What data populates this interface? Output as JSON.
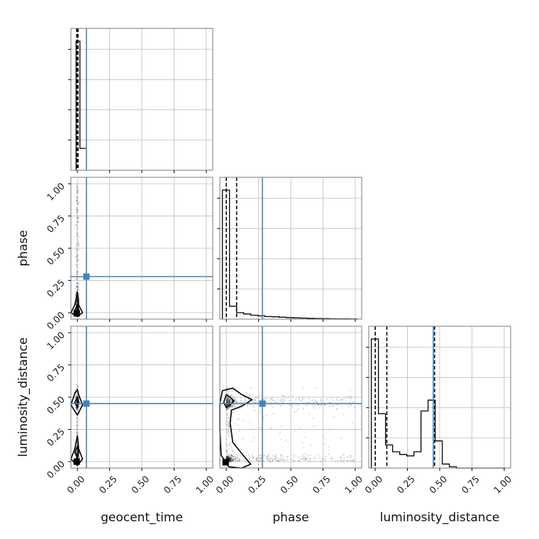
{
  "chart_data": {
    "type": "corner",
    "parameters": [
      "geocent_time",
      "phase",
      "luminosity_distance"
    ],
    "axis_labels": {
      "x": [
        "geocent_time",
        "phase",
        "luminosity_distance"
      ],
      "y": [
        "phase",
        "luminosity_distance"
      ]
    },
    "tick_labels": [
      "0.00",
      "0.25",
      "0.50",
      "0.75",
      "1.00"
    ],
    "range": [
      -0.05,
      1.05
    ],
    "grid": true,
    "colors": {
      "truth": "#4682b4",
      "hist": "#000000",
      "samples": "#000000"
    },
    "truths": {
      "geocent_time": 0.07,
      "phase": 0.28,
      "luminosity_distance": 0.45
    },
    "quantile_lines": {
      "geocent_time": [
        -0.005,
        0.0,
        0.005
      ],
      "phase": [
        0.0,
        0.08
      ],
      "luminosity_distance": [
        0.0,
        0.09,
        0.46
      ]
    },
    "histograms": {
      "geocent_time": {
        "edges": [
          -0.01,
          0.02,
          0.07
        ],
        "counts": [
          1.0,
          0.17
        ]
      },
      "phase": {
        "edges": [
          -0.03,
          0.025,
          0.08,
          0.135,
          0.19,
          0.245,
          0.3,
          0.355,
          0.41,
          0.465,
          0.52,
          0.575,
          0.63,
          0.685,
          0.74,
          0.795,
          0.85,
          0.905,
          0.96,
          1.015
        ],
        "counts": [
          1.0,
          0.1,
          0.05,
          0.04,
          0.03,
          0.025,
          0.02,
          0.018,
          0.015,
          0.012,
          0.01,
          0.008,
          0.006,
          0.005,
          0.004,
          0.003,
          0.002,
          0.002,
          0.001
        ]
      },
      "luminosity_distance": {
        "edges": [
          -0.03,
          0.025,
          0.08,
          0.135,
          0.19,
          0.245,
          0.3,
          0.355,
          0.41,
          0.465,
          0.52,
          0.575,
          0.63,
          0.685,
          0.74,
          0.795,
          0.85,
          0.905,
          0.96,
          1.015
        ],
        "counts": [
          0.95,
          0.4,
          0.17,
          0.12,
          0.1,
          0.09,
          0.12,
          0.42,
          0.5,
          0.2,
          0.03,
          0.01,
          0.0,
          0.0,
          0.0,
          0.0,
          0.0,
          0.0,
          0.0
        ]
      }
    },
    "contours": {
      "phase_vs_geocent_time": [
        {
          "points": [
            [
              0.0,
              -0.03
            ],
            [
              -0.05,
              0.0
            ],
            [
              -0.02,
              0.06
            ],
            [
              0.0,
              0.16
            ],
            [
              0.01,
              0.06
            ],
            [
              0.04,
              0.0
            ],
            [
              0.0,
              -0.03
            ]
          ]
        },
        {
          "points": [
            [
              0.0,
              0.0
            ],
            [
              -0.02,
              0.02
            ],
            [
              0.0,
              0.06
            ],
            [
              0.01,
              0.02
            ],
            [
              0.0,
              0.0
            ]
          ]
        }
      ],
      "luminosity_distance_vs_geocent_time": [
        {
          "points": [
            [
              0.0,
              -0.03
            ],
            [
              -0.05,
              0.02
            ],
            [
              -0.02,
              0.1
            ],
            [
              0.0,
              0.2
            ],
            [
              0.01,
              0.1
            ],
            [
              0.04,
              0.02
            ],
            [
              0.0,
              -0.03
            ]
          ]
        },
        {
          "points": [
            [
              0.0,
              0.36
            ],
            [
              -0.05,
              0.44
            ],
            [
              -0.02,
              0.53
            ],
            [
              0.0,
              0.56
            ],
            [
              0.01,
              0.52
            ],
            [
              0.04,
              0.44
            ],
            [
              0.0,
              0.36
            ]
          ]
        },
        {
          "points": [
            [
              0.0,
              0.03
            ],
            [
              -0.02,
              0.07
            ],
            [
              0.0,
              0.12
            ],
            [
              0.01,
              0.07
            ],
            [
              0.0,
              0.03
            ]
          ]
        },
        {
          "points": [
            [
              0.0,
              0.42
            ],
            [
              -0.02,
              0.46
            ],
            [
              0.0,
              0.5
            ],
            [
              0.01,
              0.46
            ],
            [
              0.0,
              0.42
            ]
          ]
        }
      ],
      "luminosity_distance_vs_phase": [
        {
          "points": [
            [
              -0.03,
              0.55
            ],
            [
              0.05,
              0.57
            ],
            [
              0.12,
              0.52
            ],
            [
              0.2,
              0.48
            ],
            [
              0.12,
              0.43
            ],
            [
              0.04,
              0.4
            ],
            [
              0.03,
              0.3
            ],
            [
              0.05,
              0.15
            ],
            [
              0.13,
              0.05
            ],
            [
              0.19,
              -0.02
            ],
            [
              0.12,
              -0.05
            ],
            [
              0.02,
              -0.04
            ],
            [
              -0.04,
              0.05
            ],
            [
              -0.05,
              0.25
            ],
            [
              -0.05,
              0.45
            ],
            [
              -0.03,
              0.55
            ]
          ]
        },
        {
          "points": [
            [
              -0.02,
              0.46
            ],
            [
              0.0,
              0.52
            ],
            [
              0.03,
              0.5
            ],
            [
              0.06,
              0.47
            ],
            [
              0.03,
              0.44
            ],
            [
              0.0,
              0.42
            ],
            [
              -0.02,
              0.46
            ]
          ]
        }
      ]
    },
    "scatter_samples": {
      "phase_vs_geocent_time": {
        "n": 420,
        "x_center": 0.0,
        "x_spread": 0.012,
        "y_max": 1.0
      },
      "luminosity_distance_vs_geocent_time": {
        "n": 420,
        "x_center": 0.0,
        "x_spread": 0.012,
        "y_max": 0.62
      },
      "luminosity_distance_vs_phase": {
        "n": 900,
        "x_max": 1.0,
        "y_clusters": [
          0.0,
          0.46
        ]
      }
    }
  }
}
